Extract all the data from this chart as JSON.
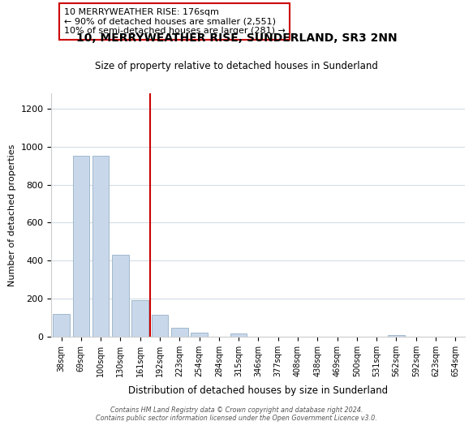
{
  "title": "10, MERRYWEATHER RISE, SUNDERLAND, SR3 2NN",
  "subtitle": "Size of property relative to detached houses in Sunderland",
  "xlabel": "Distribution of detached houses by size in Sunderland",
  "ylabel": "Number of detached properties",
  "bar_labels": [
    "38sqm",
    "69sqm",
    "100sqm",
    "130sqm",
    "161sqm",
    "192sqm",
    "223sqm",
    "254sqm",
    "284sqm",
    "315sqm",
    "346sqm",
    "377sqm",
    "408sqm",
    "438sqm",
    "469sqm",
    "500sqm",
    "531sqm",
    "562sqm",
    "592sqm",
    "623sqm",
    "654sqm"
  ],
  "bar_values": [
    120,
    950,
    950,
    430,
    190,
    115,
    47,
    22,
    0,
    18,
    0,
    0,
    0,
    0,
    0,
    0,
    0,
    10,
    0,
    0,
    0
  ],
  "bar_color": "#c8d8ea",
  "bar_edge_color": "#a0b8cc",
  "vline_color": "#cc0000",
  "annotation_text": "10 MERRYWEATHER RISE: 176sqm\n← 90% of detached houses are smaller (2,551)\n10% of semi-detached houses are larger (281) →",
  "box_edge_color": "#cc0000",
  "ylim": [
    0,
    1280
  ],
  "yticks": [
    0,
    200,
    400,
    600,
    800,
    1000,
    1200
  ],
  "footer_line1": "Contains HM Land Registry data © Crown copyright and database right 2024.",
  "footer_line2": "Contains public sector information licensed under the Open Government Licence v3.0.",
  "background_color": "#ffffff",
  "grid_color": "#d4dde6"
}
